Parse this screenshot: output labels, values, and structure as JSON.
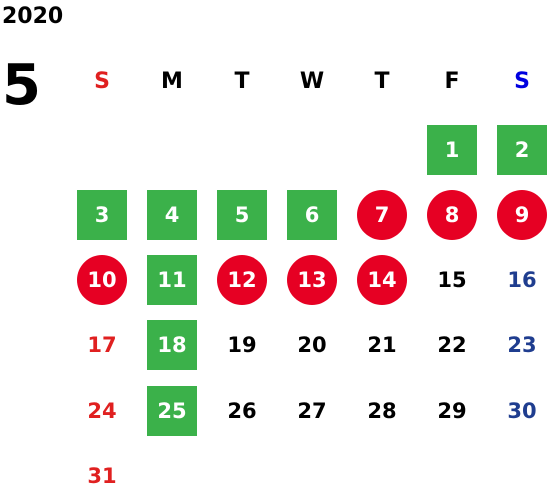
{
  "year": "2020",
  "month": "5",
  "weekdays": [
    "S",
    "M",
    "T",
    "W",
    "T",
    "F",
    "S"
  ],
  "colors": {
    "green": "#3bb14a",
    "red": "#e60023",
    "sunday": "#e02020",
    "saturday": "#1f3d8f",
    "saturday_header": "#0000e0"
  },
  "days": [
    {
      "d": "1",
      "col": 5,
      "row": 0,
      "style": "green"
    },
    {
      "d": "2",
      "col": 6,
      "row": 0,
      "style": "green"
    },
    {
      "d": "3",
      "col": 0,
      "row": 1,
      "style": "green"
    },
    {
      "d": "4",
      "col": 1,
      "row": 1,
      "style": "green"
    },
    {
      "d": "5",
      "col": 2,
      "row": 1,
      "style": "green"
    },
    {
      "d": "6",
      "col": 3,
      "row": 1,
      "style": "green"
    },
    {
      "d": "7",
      "col": 4,
      "row": 1,
      "style": "red"
    },
    {
      "d": "8",
      "col": 5,
      "row": 1,
      "style": "red"
    },
    {
      "d": "9",
      "col": 6,
      "row": 1,
      "style": "red"
    },
    {
      "d": "10",
      "col": 0,
      "row": 2,
      "style": "red"
    },
    {
      "d": "11",
      "col": 1,
      "row": 2,
      "style": "green"
    },
    {
      "d": "12",
      "col": 2,
      "row": 2,
      "style": "red"
    },
    {
      "d": "13",
      "col": 3,
      "row": 2,
      "style": "red"
    },
    {
      "d": "14",
      "col": 4,
      "row": 2,
      "style": "red"
    },
    {
      "d": "15",
      "col": 5,
      "row": 2,
      "style": "plain"
    },
    {
      "d": "16",
      "col": 6,
      "row": 2,
      "style": "sat"
    },
    {
      "d": "17",
      "col": 0,
      "row": 3,
      "style": "sun"
    },
    {
      "d": "18",
      "col": 1,
      "row": 3,
      "style": "green"
    },
    {
      "d": "19",
      "col": 2,
      "row": 3,
      "style": "plain"
    },
    {
      "d": "20",
      "col": 3,
      "row": 3,
      "style": "plain"
    },
    {
      "d": "21",
      "col": 4,
      "row": 3,
      "style": "plain"
    },
    {
      "d": "22",
      "col": 5,
      "row": 3,
      "style": "plain"
    },
    {
      "d": "23",
      "col": 6,
      "row": 3,
      "style": "sat"
    },
    {
      "d": "24",
      "col": 0,
      "row": 4,
      "style": "sun"
    },
    {
      "d": "25",
      "col": 1,
      "row": 4,
      "style": "green"
    },
    {
      "d": "26",
      "col": 2,
      "row": 4,
      "style": "plain"
    },
    {
      "d": "27",
      "col": 3,
      "row": 4,
      "style": "plain"
    },
    {
      "d": "28",
      "col": 4,
      "row": 4,
      "style": "plain"
    },
    {
      "d": "29",
      "col": 5,
      "row": 4,
      "style": "plain"
    },
    {
      "d": "30",
      "col": 6,
      "row": 4,
      "style": "sat"
    },
    {
      "d": "31",
      "col": 0,
      "row": 5,
      "style": "sun"
    }
  ]
}
